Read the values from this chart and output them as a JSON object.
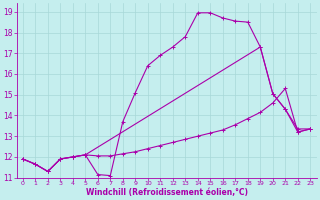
{
  "xlabel": "Windchill (Refroidissement éolien,°C)",
  "bg_color": "#c5eeee",
  "line_color": "#aa00aa",
  "grid_color": "#a8d8d8",
  "xlim": [
    -0.5,
    23.5
  ],
  "ylim": [
    11.0,
    19.4
  ],
  "xticks": [
    0,
    1,
    2,
    3,
    4,
    5,
    6,
    7,
    8,
    9,
    10,
    11,
    12,
    13,
    14,
    15,
    16,
    17,
    18,
    19,
    20,
    21,
    22,
    23
  ],
  "yticks": [
    11,
    12,
    13,
    14,
    15,
    16,
    17,
    18,
    19
  ],
  "line1_x": [
    0,
    1,
    2,
    3,
    4,
    5,
    6,
    7,
    8,
    9,
    10,
    11,
    12,
    13,
    14,
    15,
    16,
    17,
    18,
    19,
    20,
    21,
    22,
    23
  ],
  "line1_y": [
    11.9,
    11.65,
    11.3,
    11.9,
    12.0,
    12.1,
    11.15,
    11.1,
    13.7,
    15.1,
    16.4,
    16.9,
    17.3,
    17.8,
    18.95,
    18.95,
    18.7,
    18.55,
    18.5,
    17.3,
    15.05,
    14.3,
    13.35,
    13.35
  ],
  "line2_x": [
    0,
    1,
    2,
    3,
    4,
    5,
    6,
    7,
    8,
    9,
    10,
    11,
    12,
    13,
    14,
    15,
    16,
    17,
    18,
    19,
    20,
    21,
    22,
    23
  ],
  "line2_y": [
    11.9,
    11.65,
    11.3,
    11.9,
    12.0,
    12.1,
    12.05,
    12.05,
    12.15,
    12.25,
    12.4,
    12.55,
    12.7,
    12.85,
    13.0,
    13.15,
    13.3,
    13.55,
    13.85,
    14.15,
    14.6,
    15.3,
    13.2,
    13.35
  ],
  "line3_x": [
    0,
    1,
    2,
    3,
    4,
    5,
    19,
    20,
    21,
    22,
    23
  ],
  "line3_y": [
    11.9,
    11.65,
    11.3,
    11.9,
    12.0,
    12.1,
    17.3,
    15.05,
    14.3,
    13.2,
    13.35
  ],
  "marker_size": 3.5,
  "linewidth": 0.8
}
